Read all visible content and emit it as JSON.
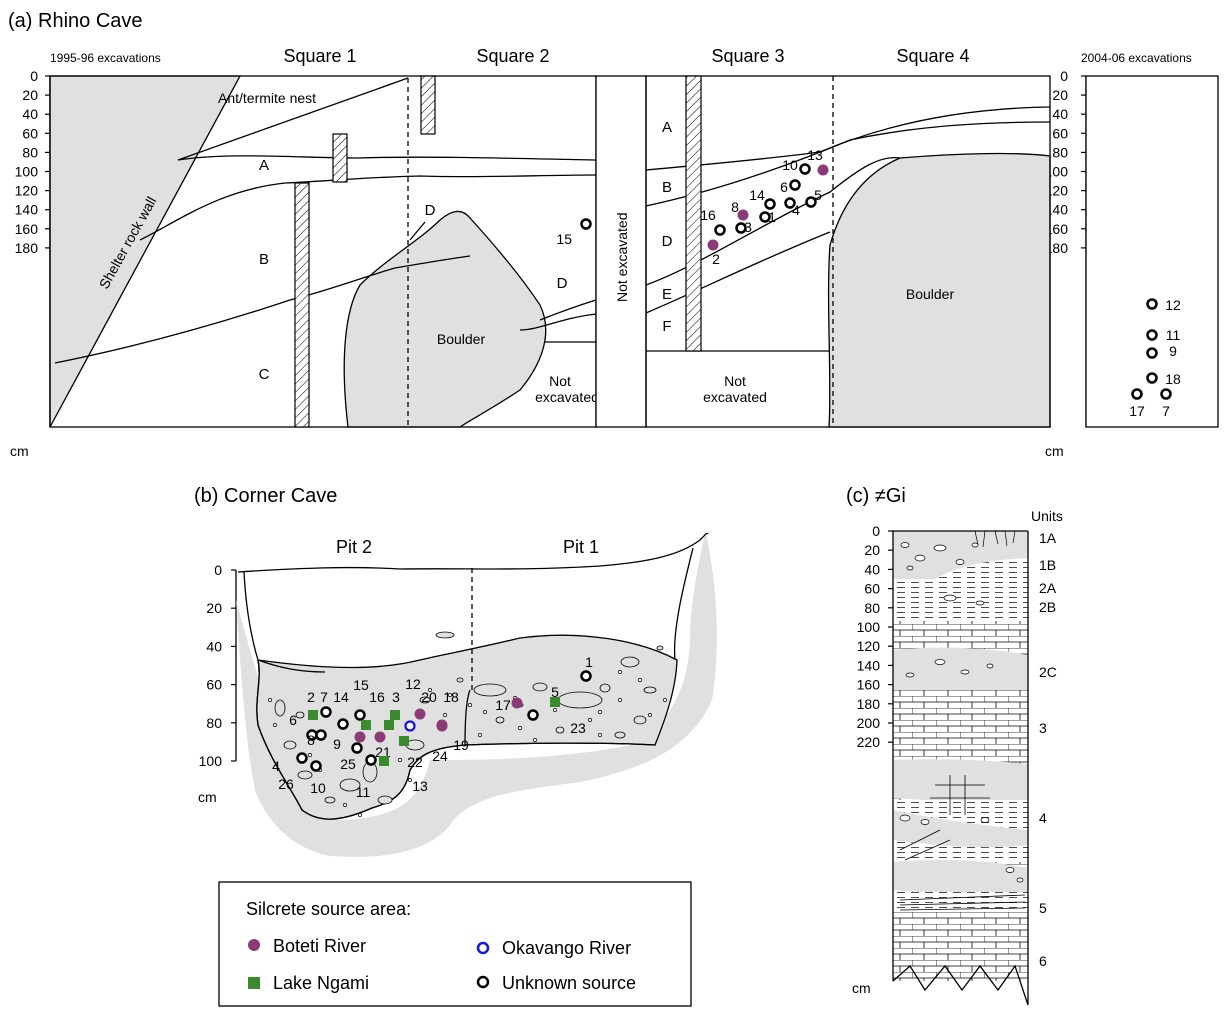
{
  "panel_a": {
    "title": "(a) Rhino Cave",
    "left_caption": "1995-96 excavations",
    "right_caption": "2004-06 excavations",
    "squares": [
      "Square 1",
      "Square 2",
      "Square 3",
      "Square 4"
    ],
    "depth_ticks": [
      "0",
      "20",
      "40",
      "60",
      "80",
      "100",
      "120",
      "140",
      "160",
      "180"
    ],
    "unit": "cm",
    "labels": {
      "nest": "Ant/termite nest",
      "wall": "Shelter rock wall",
      "boulder": "Boulder",
      "not_excavated": "Not excavated",
      "not": "Not",
      "excavated": "excavated"
    },
    "layers_left": [
      "A",
      "B",
      "C",
      "D",
      "D"
    ],
    "layers_right": [
      "A",
      "B",
      "D",
      "E",
      "F"
    ],
    "artefacts": [
      {
        "id": "15",
        "source": "unknown"
      },
      {
        "id": "10",
        "source": "unknown"
      },
      {
        "id": "13",
        "source": "boteti"
      },
      {
        "id": "14",
        "source": "unknown"
      },
      {
        "id": "6",
        "source": "unknown"
      },
      {
        "id": "5",
        "source": "unknown"
      },
      {
        "id": "4",
        "source": "unknown"
      },
      {
        "id": "8",
        "source": "boteti"
      },
      {
        "id": "1",
        "source": "unknown"
      },
      {
        "id": "3",
        "source": "unknown"
      },
      {
        "id": "16",
        "source": "unknown"
      },
      {
        "id": "2",
        "source": "boteti"
      },
      {
        "id": "12",
        "source": "unknown"
      },
      {
        "id": "11",
        "source": "unknown"
      },
      {
        "id": "9",
        "source": "unknown"
      },
      {
        "id": "18",
        "source": "unknown"
      },
      {
        "id": "17",
        "source": "unknown"
      },
      {
        "id": "7",
        "source": "unknown"
      }
    ]
  },
  "panel_b": {
    "title": "(b) Corner Cave",
    "pits": [
      "Pit 2",
      "Pit 1"
    ],
    "depth_ticks": [
      "0",
      "20",
      "40",
      "60",
      "80",
      "100"
    ],
    "unit": "cm",
    "artefact_labels": [
      "2",
      "7",
      "15",
      "14",
      "16",
      "3",
      "12",
      "20",
      "18",
      "6",
      "8",
      "9",
      "21",
      "4",
      "25",
      "26",
      "10",
      "11",
      "13",
      "22",
      "24",
      "19",
      "17",
      "5",
      "1",
      "23"
    ]
  },
  "panel_c": {
    "title": "(c) ≠Gi",
    "units_header": "Units",
    "depth_ticks": [
      "0",
      "20",
      "40",
      "60",
      "80",
      "100",
      "120",
      "140",
      "160",
      "180",
      "200",
      "220"
    ],
    "unit": "cm",
    "units": [
      "1A",
      "1B",
      "2A",
      "2B",
      "2C",
      "3",
      "4",
      "5",
      "6"
    ]
  },
  "legend": {
    "title": "Silcrete source area:",
    "items": [
      {
        "label": "Boteti River",
        "symbol": "purple-dot-icon",
        "color": "#8b3a77"
      },
      {
        "label": "Okavango River",
        "symbol": "blue-ring-icon",
        "color": "#1515e0"
      },
      {
        "label": "Lake Ngami",
        "symbol": "green-square-icon",
        "color": "#3a8a2e"
      },
      {
        "label": "Unknown source",
        "symbol": "black-ring-icon",
        "color": "#000000"
      }
    ]
  }
}
